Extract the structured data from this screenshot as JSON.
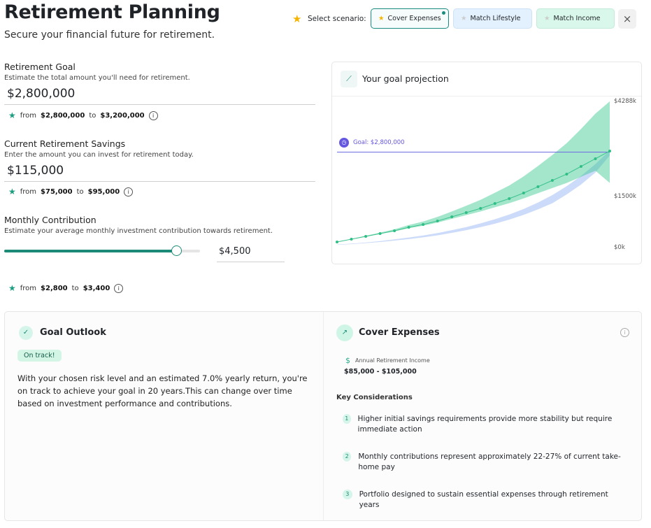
{
  "header": {
    "title": "Retirement Planning",
    "subtitle": "Secure your financial future for retirement.",
    "select_label": "Select scenario:",
    "scenarios": [
      {
        "label": "Cover Expenses",
        "active": true
      },
      {
        "label": "Match Lifestyle"
      },
      {
        "label": "Match Income"
      }
    ],
    "close": "×"
  },
  "goal": {
    "label": "Retirement Goal",
    "help": "Estimate the total amount you'll need for retirement.",
    "value": "$2,800,000",
    "from_label": "from",
    "from": "$2,800,000",
    "to_label": "to",
    "to": "$3,200,000"
  },
  "savings": {
    "label": "Current Retirement Savings",
    "help": "Enter the amount you can invest for retirement today.",
    "value": "$115,000",
    "from_label": "from",
    "from": "$75,000",
    "to_label": "to",
    "to": "$95,000"
  },
  "monthly": {
    "label": "Monthly Contribution",
    "help": "Estimate your average monthly investment contribution towards retirement.",
    "value": "$4,500",
    "slider_fraction": 0.88,
    "from_label": "from",
    "from": "$2,800",
    "to_label": "to",
    "to": "$3,400"
  },
  "projection": {
    "title": "Your goal projection",
    "goal_label": "Goal: $2,800,000"
  },
  "chart_data": {
    "type": "area",
    "title": "Your goal projection",
    "ylim": [
      0,
      4288
    ],
    "yticks": [
      "$4288k",
      "$1500k",
      "$0k"
    ],
    "ytick_values": [
      4288,
      1500,
      0
    ],
    "goal": 2800,
    "median": [
      164,
      246,
      328,
      410,
      492,
      595,
      677,
      780,
      903,
      1026,
      1149,
      1293,
      1436,
      1600,
      1785,
      1970,
      2155,
      2380,
      2606,
      2832
    ],
    "upper": [
      164,
      253,
      345,
      439,
      536,
      661,
      765,
      899,
      1060,
      1227,
      1401,
      1608,
      1822,
      2087,
      2392,
      2715,
      3062,
      3479,
      3930,
      4288
    ],
    "lower": [
      164,
      242,
      321,
      397,
      474,
      567,
      641,
      733,
      843,
      951,
      1058,
      1183,
      1302,
      1441,
      1596,
      1747,
      1894,
      2077,
      2255,
      1897
    ],
    "baseline_low": [
      80,
      100,
      130,
      165,
      205,
      250,
      300,
      360,
      430,
      510,
      600,
      700,
      820,
      960,
      1120,
      1300,
      1560,
      1850,
      2200,
      2700
    ],
    "baseline_high": [
      90,
      115,
      150,
      190,
      240,
      295,
      355,
      425,
      510,
      600,
      710,
      830,
      970,
      1130,
      1320,
      1540,
      1800,
      2100,
      2450,
      2850
    ]
  },
  "outlook": {
    "title": "Goal Outlook",
    "badge": "On track!",
    "text": "With your chosen risk level and an estimated 7.0% yearly return, you're on track to achieve your goal in 20 years.This can change over time based on investment performance and contributions."
  },
  "scenario_card": {
    "title": "Cover Expenses",
    "income_label": "Annual Retirement Income",
    "income": "$85,000 - $105,000",
    "considerations_title": "Key Considerations",
    "considerations": [
      {
        "n": "1",
        "text": "Higher initial savings requirements provide more stability but require immediate action"
      },
      {
        "n": "2",
        "text": "Monthly contributions represent approximately 22-27% of current take-home pay"
      },
      {
        "n": "3",
        "text": "Portfolio designed to sustain essential expenses through retirement years"
      }
    ]
  }
}
